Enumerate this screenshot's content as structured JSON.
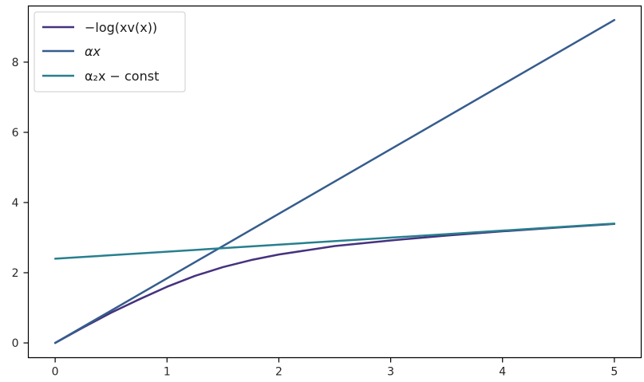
{
  "chart_data": {
    "type": "line",
    "title": "",
    "xlabel": "",
    "ylabel": "",
    "xlim": [
      -0.24,
      5.24
    ],
    "ylim": [
      -0.42,
      9.6
    ],
    "xticks": [
      0,
      1,
      2,
      3,
      4,
      5
    ],
    "yticks": [
      0,
      2,
      4,
      6,
      8
    ],
    "grid": false,
    "legend_position": "upper-left",
    "series": [
      {
        "name": "−log(xv(x))",
        "color": "#46327e",
        "x": [
          0,
          0.25,
          0.5,
          0.75,
          1.0,
          1.25,
          1.5,
          1.75,
          2.0,
          2.5,
          3.0,
          3.5,
          4.0,
          4.5,
          5.0
        ],
        "y": [
          0,
          0.44,
          0.86,
          1.24,
          1.6,
          1.91,
          2.16,
          2.36,
          2.52,
          2.76,
          2.92,
          3.06,
          3.18,
          3.29,
          3.39
        ]
      },
      {
        "name": "αx",
        "color": "#365c8d",
        "x": [
          0,
          5
        ],
        "y": [
          0,
          9.2
        ]
      },
      {
        "name": "α₂x − const",
        "color": "#277f8e",
        "x": [
          0,
          5
        ],
        "y": [
          2.4,
          3.4
        ]
      }
    ]
  }
}
